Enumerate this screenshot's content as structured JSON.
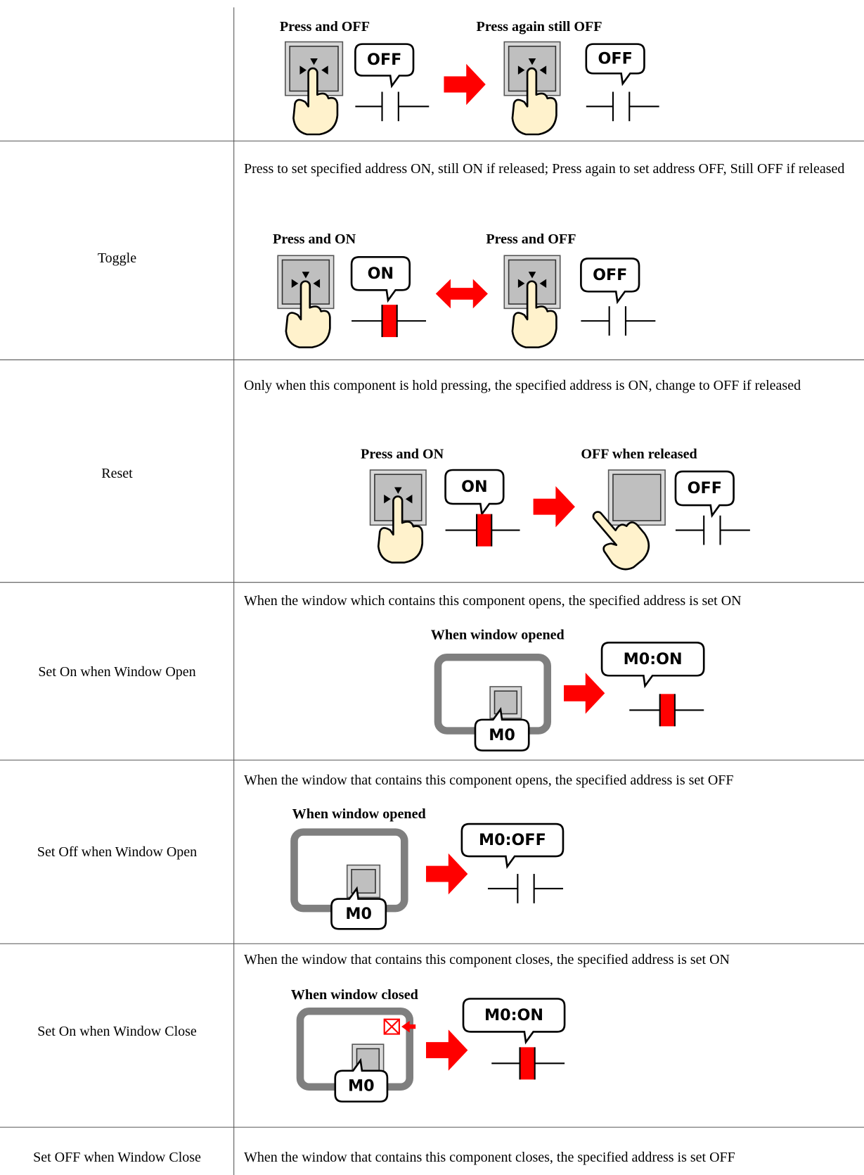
{
  "rows": [
    {
      "figure": {
        "captions": [
          "Press and OFF",
          "Press again still OFF"
        ],
        "bubbles": [
          "OFF",
          "OFF"
        ]
      }
    },
    {
      "label": "Toggle",
      "description": "Press to set specified address ON, still ON if released; Press again to set address OFF, Still OFF if released",
      "figure": {
        "captions": [
          "Press and ON",
          "Press and OFF"
        ],
        "bubbles": [
          "ON",
          "OFF"
        ]
      }
    },
    {
      "label": "Reset",
      "description": "Only when this component is hold pressing, the specified address is ON, change to OFF if released",
      "figure": {
        "captions": [
          "Press and ON",
          "OFF when released"
        ],
        "bubbles": [
          "ON",
          "OFF"
        ]
      }
    },
    {
      "label": "Set On when Window Open",
      "description": "When the window which contains this component opens, the specified address is set ON",
      "figure": {
        "captions": [
          "When window opened"
        ],
        "bubbles": [
          "M0",
          "M0:ON"
        ]
      }
    },
    {
      "label": "Set Off when Window Open",
      "description": "When the window that contains this component opens, the specified address is set OFF",
      "figure": {
        "captions": [
          "When window opened"
        ],
        "bubbles": [
          "M0",
          "M0:OFF"
        ]
      }
    },
    {
      "label": "Set On when Window Close",
      "description": "When the window that contains this component closes, the specified address is set ON",
      "figure": {
        "captions": [
          "When window closed"
        ],
        "bubbles": [
          "M0",
          "M0:ON"
        ]
      }
    },
    {
      "label": "Set OFF when Window Close",
      "description": "When the window that contains this component closes, the specified address is set OFF"
    }
  ]
}
